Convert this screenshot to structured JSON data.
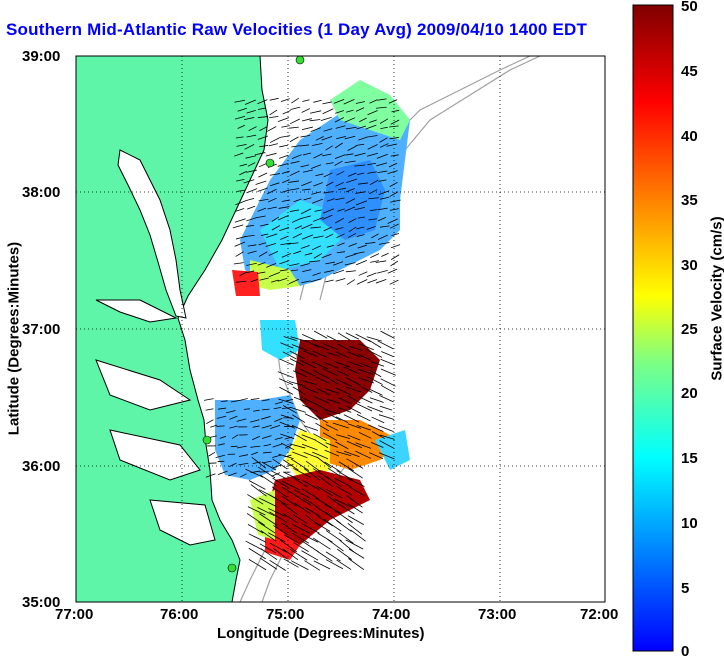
{
  "title": "Southern Mid-Atlantic Raw Velocities (1 Day Avg) 2009/04/10 1400 EDT",
  "x_axis": {
    "label": "Longitude (Degrees:Minutes)",
    "ticks": [
      "77:00",
      "76:00",
      "75:00",
      "74:00",
      "73:00",
      "72:00"
    ]
  },
  "y_axis": {
    "label": "Latitude (Degrees:Minutes)",
    "ticks": [
      "39:00",
      "38:00",
      "37:00",
      "36:00",
      "35:00"
    ]
  },
  "colorbar": {
    "label": "Surface Velocity (cm/s)",
    "ticks": [
      "50",
      "45",
      "40",
      "35",
      "30",
      "25",
      "20",
      "15",
      "10",
      "5",
      "0"
    ],
    "range": [
      0,
      50
    ],
    "colormap": "jet"
  },
  "colors": {
    "land": "#5ef5a8",
    "water": "#ffffff",
    "title": "#0000ff",
    "bathymetry": "#a0a0a0",
    "stations": "#33dd33"
  }
}
